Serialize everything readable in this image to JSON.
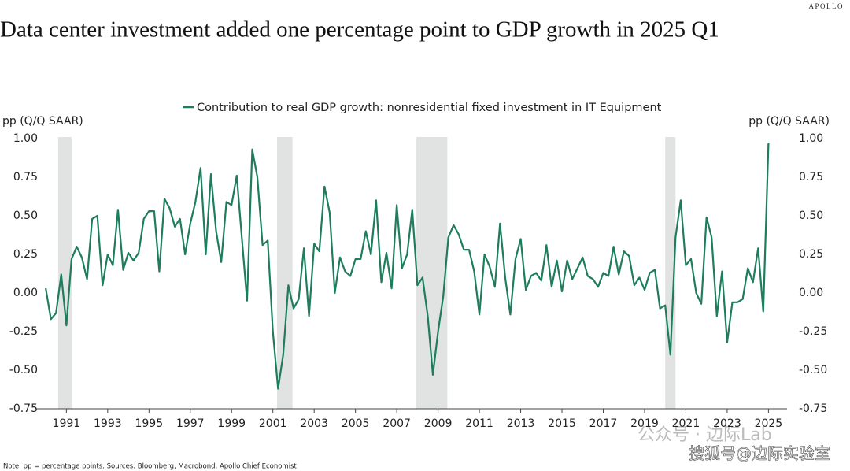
{
  "chart_data": {
    "type": "line",
    "brand": "APOLLO",
    "title": "Data center investment added one percentage point to GDP growth in 2025 Q1",
    "y_label": "pp (Q/Q SAAR)",
    "y2_label": "pp (Q/Q SAAR)",
    "note": "Note: pp = percentage points. Sources: Bloomberg, Macrobond, Apollo Chief Economist",
    "watermarks": [
      "公众号 · 边际Lab",
      "搜狐号@边际实验室"
    ],
    "legend": "top",
    "x": [
      1990,
      1990.25,
      1990.5,
      1990.75,
      1991,
      1991.25,
      1991.5,
      1991.75,
      1992,
      1992.25,
      1992.5,
      1992.75,
      1993,
      1993.25,
      1993.5,
      1993.75,
      1994,
      1994.25,
      1994.5,
      1994.75,
      1995,
      1995.25,
      1995.5,
      1995.75,
      1996,
      1996.25,
      1996.5,
      1996.75,
      1997,
      1997.25,
      1997.5,
      1997.75,
      1998,
      1998.25,
      1998.5,
      1998.75,
      1999,
      1999.25,
      1999.5,
      1999.75,
      2000,
      2000.25,
      2000.5,
      2000.75,
      2001,
      2001.25,
      2001.5,
      2001.75,
      2002,
      2002.25,
      2002.5,
      2002.75,
      2003,
      2003.25,
      2003.5,
      2003.75,
      2004,
      2004.25,
      2004.5,
      2004.75,
      2005,
      2005.25,
      2005.5,
      2005.75,
      2006,
      2006.25,
      2006.5,
      2006.75,
      2007,
      2007.25,
      2007.5,
      2007.75,
      2008,
      2008.25,
      2008.5,
      2008.75,
      2009,
      2009.25,
      2009.5,
      2009.75,
      2010,
      2010.25,
      2010.5,
      2010.75,
      2011,
      2011.25,
      2011.5,
      2011.75,
      2012,
      2012.25,
      2012.5,
      2012.75,
      2013,
      2013.25,
      2013.5,
      2013.75,
      2014,
      2014.25,
      2014.5,
      2014.75,
      2015,
      2015.25,
      2015.5,
      2015.75,
      2016,
      2016.25,
      2016.5,
      2016.75,
      2017,
      2017.25,
      2017.5,
      2017.75,
      2018,
      2018.25,
      2018.5,
      2018.75,
      2019,
      2019.25,
      2019.5,
      2019.75,
      2020,
      2020.25,
      2020.5,
      2020.75,
      2021,
      2021.25,
      2021.5,
      2021.75,
      2022,
      2022.25,
      2022.5,
      2022.75,
      2023,
      2023.25,
      2023.5,
      2023.75,
      2024,
      2024.25,
      2024.5,
      2024.75,
      2025
    ],
    "series": [
      {
        "name": "Contribution to real GDP growth: nonresidential fixed investment in IT Equipment",
        "color": "#1d7d5c",
        "values": [
          0.03,
          -0.17,
          -0.13,
          0.12,
          -0.21,
          0.22,
          0.3,
          0.23,
          0.09,
          0.48,
          0.5,
          0.05,
          0.25,
          0.18,
          0.54,
          0.15,
          0.26,
          0.21,
          0.26,
          0.48,
          0.53,
          0.53,
          0.14,
          0.61,
          0.55,
          0.43,
          0.48,
          0.25,
          0.45,
          0.59,
          0.81,
          0.25,
          0.77,
          0.4,
          0.2,
          0.59,
          0.57,
          0.76,
          0.35,
          -0.05,
          0.93,
          0.75,
          0.31,
          0.34,
          -0.25,
          -0.62,
          -0.4,
          0.05,
          -0.1,
          -0.04,
          0.29,
          -0.15,
          0.32,
          0.27,
          0.69,
          0.52,
          0.0,
          0.23,
          0.14,
          0.11,
          0.22,
          0.22,
          0.4,
          0.25,
          0.6,
          0.07,
          0.26,
          0.03,
          0.57,
          0.16,
          0.25,
          0.54,
          0.05,
          0.1,
          -0.15,
          -0.53,
          -0.25,
          -0.02,
          0.36,
          0.44,
          0.38,
          0.28,
          0.28,
          0.14,
          -0.14,
          0.25,
          0.17,
          0.04,
          0.45,
          0.1,
          -0.14,
          0.22,
          0.35,
          0.02,
          0.11,
          0.13,
          0.08,
          0.31,
          0.04,
          0.21,
          0.01,
          0.21,
          0.09,
          0.16,
          0.23,
          0.11,
          0.09,
          0.04,
          0.13,
          0.11,
          0.3,
          0.12,
          0.27,
          0.24,
          0.05,
          0.1,
          0.02,
          0.13,
          0.15,
          -0.1,
          -0.08,
          -0.4,
          0.36,
          0.6,
          0.18,
          0.22,
          0.0,
          -0.07,
          0.49,
          0.36,
          -0.15,
          0.14,
          -0.32,
          -0.06,
          -0.06,
          -0.04,
          0.16,
          0.07,
          0.29,
          -0.12,
          0.97
        ]
      }
    ],
    "recessions": [
      [
        1990.6,
        1991.25
      ],
      [
        2001.2,
        2001.95
      ],
      [
        2007.95,
        2009.45
      ],
      [
        2020,
        2020.5
      ]
    ],
    "recession_color": "#e1e3e2",
    "xlim": [
      1989.5,
      2025.9
    ],
    "xticks": [
      1991,
      1993,
      1995,
      1997,
      1999,
      2001,
      2003,
      2005,
      2007,
      2009,
      2011,
      2013,
      2015,
      2017,
      2019,
      2021,
      2023,
      2025
    ],
    "ylim": [
      -0.75,
      1.0
    ],
    "yticks": [
      {
        "value": 1.0,
        "label": "1.00"
      },
      {
        "value": 0.75,
        "label": "0.75"
      },
      {
        "value": 0.5,
        "label": "0.50"
      },
      {
        "value": 0.25,
        "label": "0.25"
      },
      {
        "value": 0.0,
        "label": "0.00"
      },
      {
        "value": -0.25,
        "label": "-0.25"
      },
      {
        "value": -0.5,
        "label": "-0.50"
      },
      {
        "value": -0.75,
        "label": "-0.75"
      }
    ]
  }
}
